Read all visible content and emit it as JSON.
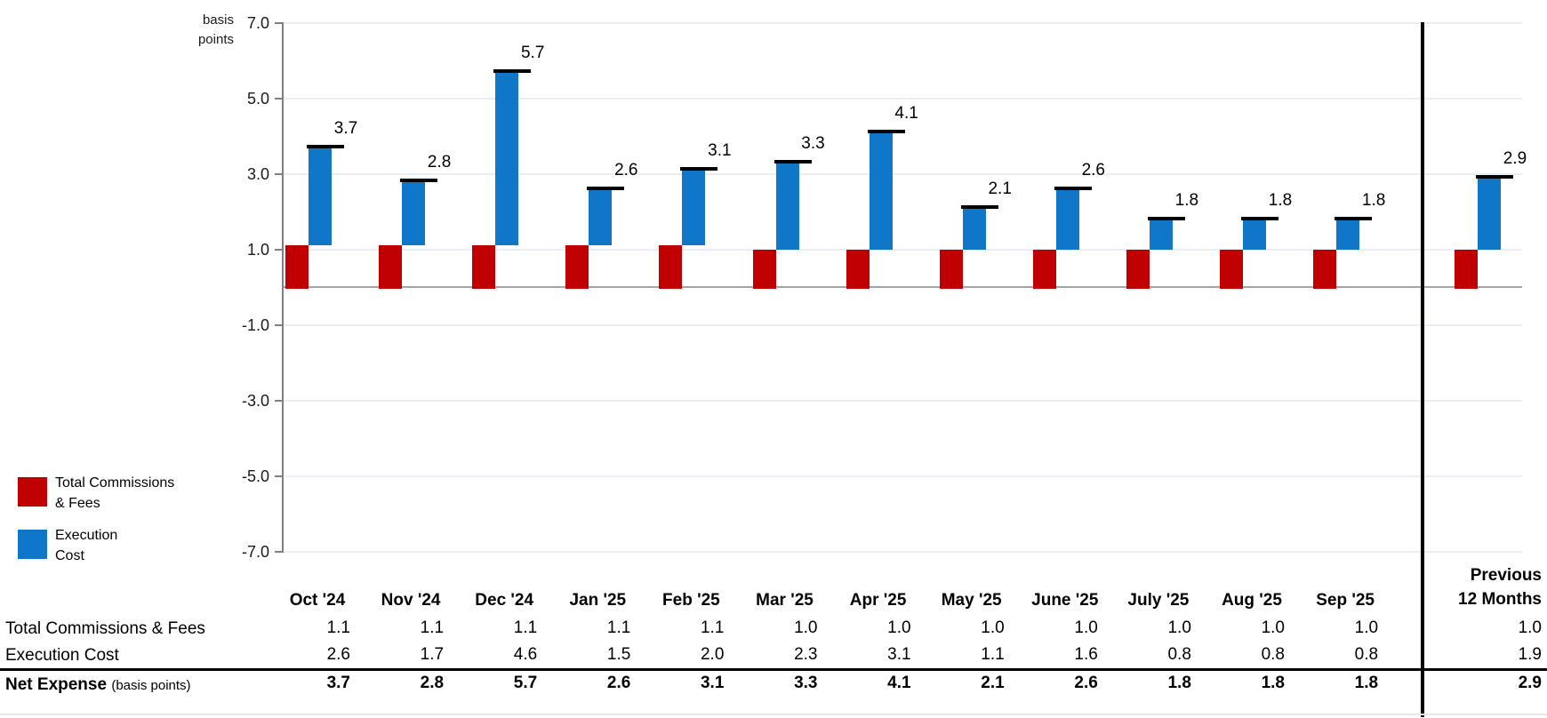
{
  "chart_meta": {
    "unit_lines": [
      "basis",
      "points"
    ],
    "yticks": [
      7.0,
      5.0,
      3.0,
      1.0,
      -1.0,
      -3.0,
      -5.0,
      -7.0
    ]
  },
  "chart_data": {
    "type": "bar",
    "variant": "stacked-with-total-markers",
    "title": "",
    "xlabel": "",
    "ylabel": "basis points",
    "ylim": [
      -7.0,
      7.0
    ],
    "ytick_step": 2.0,
    "grid": true,
    "legend_position": "bottom-left",
    "categories": [
      "Oct '24",
      "Nov '24",
      "Dec '24",
      "Jan '25",
      "Feb '25",
      "Mar '25",
      "Apr '25",
      "May '25",
      "June '25",
      "July '25",
      "Aug '25",
      "Sep '25",
      "Previous 12 Months"
    ],
    "series": [
      {
        "name": "Total Commissions & Fees",
        "color": "#C00000",
        "values": [
          1.1,
          1.1,
          1.1,
          1.1,
          1.1,
          1.0,
          1.0,
          1.0,
          1.0,
          1.0,
          1.0,
          1.0,
          1.0
        ]
      },
      {
        "name": "Execution Cost",
        "color": "#0F76C8",
        "values": [
          2.6,
          1.7,
          4.6,
          1.5,
          2.0,
          2.3,
          3.1,
          1.1,
          1.6,
          0.8,
          0.8,
          0.8,
          1.9
        ]
      }
    ],
    "totals": {
      "name": "Net Expense",
      "values": [
        3.7,
        2.8,
        5.7,
        2.6,
        3.1,
        3.3,
        4.1,
        2.1,
        2.6,
        1.8,
        1.8,
        1.8,
        2.9
      ]
    }
  },
  "legend": {
    "items": [
      {
        "name": "Total Commissions & Fees",
        "lines": [
          "Total Commissions",
          "& Fees"
        ],
        "color": "#C00000"
      },
      {
        "name": "Execution Cost",
        "lines": [
          "Execution",
          "Cost"
        ],
        "color": "#0F76C8"
      }
    ]
  },
  "table": {
    "col_headers": [
      "Oct '24",
      "Nov '24",
      "Dec '24",
      "Jan '25",
      "Feb '25",
      "Mar '25",
      "Apr '25",
      "May '25",
      "June '25",
      "July '25",
      "Aug '25",
      "Sep '25"
    ],
    "final_col_header_lines": [
      "Previous",
      "12 Months"
    ],
    "rows": [
      {
        "label": "Total Commissions & Fees",
        "note": "",
        "bold": false,
        "values": [
          1.1,
          1.1,
          1.1,
          1.1,
          1.1,
          1.0,
          1.0,
          1.0,
          1.0,
          1.0,
          1.0,
          1.0,
          1.0
        ]
      },
      {
        "label": "Execution Cost",
        "note": "",
        "bold": false,
        "values": [
          2.6,
          1.7,
          4.6,
          1.5,
          2.0,
          2.3,
          3.1,
          1.1,
          1.6,
          0.8,
          0.8,
          0.8,
          1.9
        ]
      },
      {
        "label": "Net Expense",
        "note": "(basis points)",
        "bold": true,
        "values": [
          3.7,
          2.8,
          5.7,
          2.6,
          3.1,
          3.3,
          4.1,
          2.1,
          2.6,
          1.8,
          1.8,
          1.8,
          2.9
        ]
      }
    ]
  },
  "colors": {
    "bar_red": "#C00000",
    "bar_blue": "#0F76C8",
    "gridline": "#E9EEF6",
    "zero_line": "#A6A6A6",
    "axis": "#808080",
    "separator": "#000000"
  }
}
